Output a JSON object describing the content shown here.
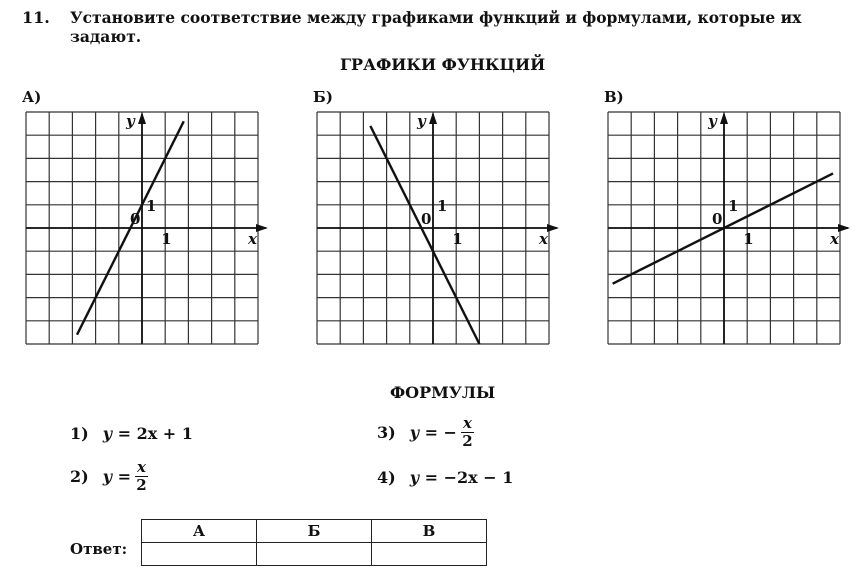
{
  "task": {
    "number": "11.",
    "text": "Установите соответствие между графиками функций и формулами, которые их задают."
  },
  "graphs_title": "ГРАФИКИ ФУНКЦИЙ",
  "chart_data": [
    {
      "type": "line",
      "label": "А)",
      "xlim": [
        -5,
        5
      ],
      "ylim": [
        -5,
        5
      ],
      "grid": true,
      "xlabel": "x",
      "ylabel": "y",
      "origin_label": "0",
      "tick_labels": {
        "x": "1",
        "y": "1"
      },
      "line": {
        "x": [
          -2.8,
          1.8
        ],
        "y": [
          -4.6,
          4.6
        ]
      }
    },
    {
      "type": "line",
      "label": "Б)",
      "xlim": [
        -5,
        5
      ],
      "ylim": [
        -5,
        5
      ],
      "grid": true,
      "xlabel": "x",
      "ylabel": "y",
      "origin_label": "0",
      "tick_labels": {
        "x": "1",
        "y": "1"
      },
      "line": {
        "x": [
          -2.7,
          2
        ],
        "y": [
          4.4,
          -5
        ]
      }
    },
    {
      "type": "line",
      "label": "В)",
      "xlim": [
        -5,
        5
      ],
      "ylim": [
        -5,
        5
      ],
      "grid": true,
      "xlabel": "x",
      "ylabel": "y",
      "origin_label": "0",
      "tick_labels": {
        "x": "1",
        "y": "1"
      },
      "line": {
        "x": [
          -4.8,
          4.7
        ],
        "y": [
          -2.4,
          2.35
        ]
      }
    }
  ],
  "formulas_title": "ФОРМУЛЫ",
  "formulas": [
    {
      "num": "1)",
      "lhs": "y = ",
      "rhs": "2x + 1"
    },
    {
      "num": "2)",
      "lhs": "y = ",
      "frac_num": "x",
      "frac_den": "2"
    },
    {
      "num": "3)",
      "lhs": "y = −",
      "frac_num": "x",
      "frac_den": "2"
    },
    {
      "num": "4)",
      "lhs": "y = ",
      "rhs": "−2x − 1"
    }
  ],
  "answer": {
    "label": "Ответ:",
    "columns": [
      "А",
      "Б",
      "В"
    ],
    "values": [
      "",
      "",
      ""
    ]
  }
}
